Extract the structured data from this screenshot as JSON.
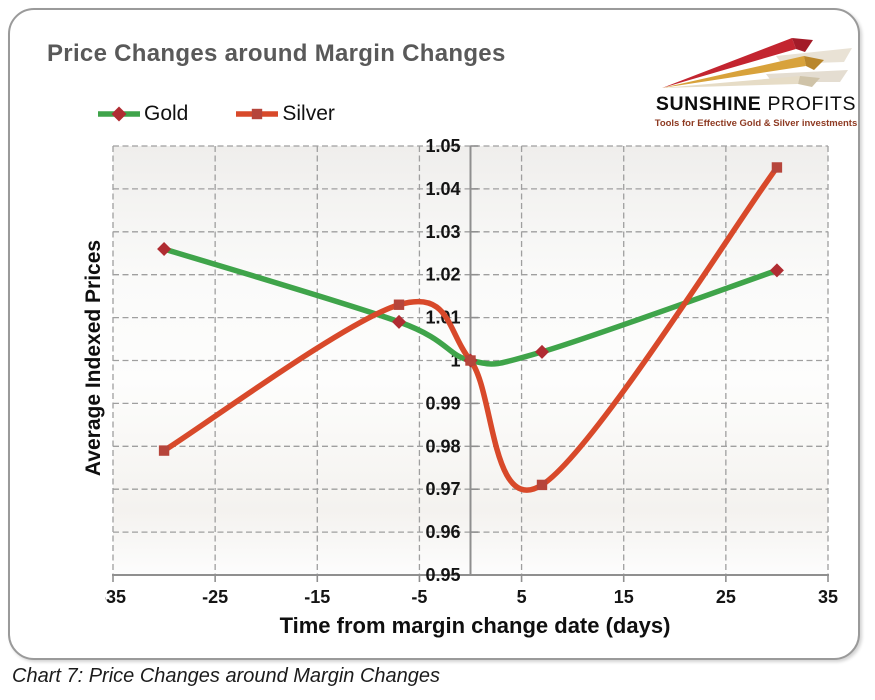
{
  "header": {
    "title": "Price Changes around Margin Changes"
  },
  "logo": {
    "name_bold": "SUNSHINE",
    "name_light": "PROFITS",
    "tagline": "Tools for Effective Gold & Silver investments"
  },
  "chart_data": {
    "type": "line",
    "title": "Price Changes around Margin Changes",
    "xlabel": "Time from margin change date (days)",
    "ylabel": "Average Indexed Prices",
    "xlim": [
      -35,
      35
    ],
    "ylim": [
      0.95,
      1.05
    ],
    "x_ticks": [
      -35,
      -25,
      -15,
      -5,
      5,
      15,
      25,
      35
    ],
    "y_ticks": [
      0.95,
      0.96,
      0.97,
      0.98,
      0.99,
      1,
      1.01,
      1.02,
      1.03,
      1.04,
      1.05
    ],
    "grid": true,
    "smooth": true,
    "legend_position": "top-left",
    "axis_color": "#8f8f8f",
    "grid_color": "#9f9f9f",
    "tick_label_color": "#141414",
    "series": [
      {
        "name": "Gold",
        "color": "#3fa44a",
        "marker": "diamond",
        "marker_color": "#b02c32",
        "x": [
          -30,
          -7,
          0,
          7,
          30
        ],
        "values": [
          1.026,
          1.009,
          1.0,
          1.002,
          1.021
        ]
      },
      {
        "name": "Silver",
        "color": "#d8492a",
        "marker": "square",
        "marker_color": "#b6453b",
        "x": [
          -30,
          -7,
          0,
          7,
          30
        ],
        "values": [
          0.979,
          1.013,
          1.0,
          0.971,
          1.045
        ]
      }
    ]
  },
  "caption": "Chart 7: Price Changes around Margin Changes"
}
